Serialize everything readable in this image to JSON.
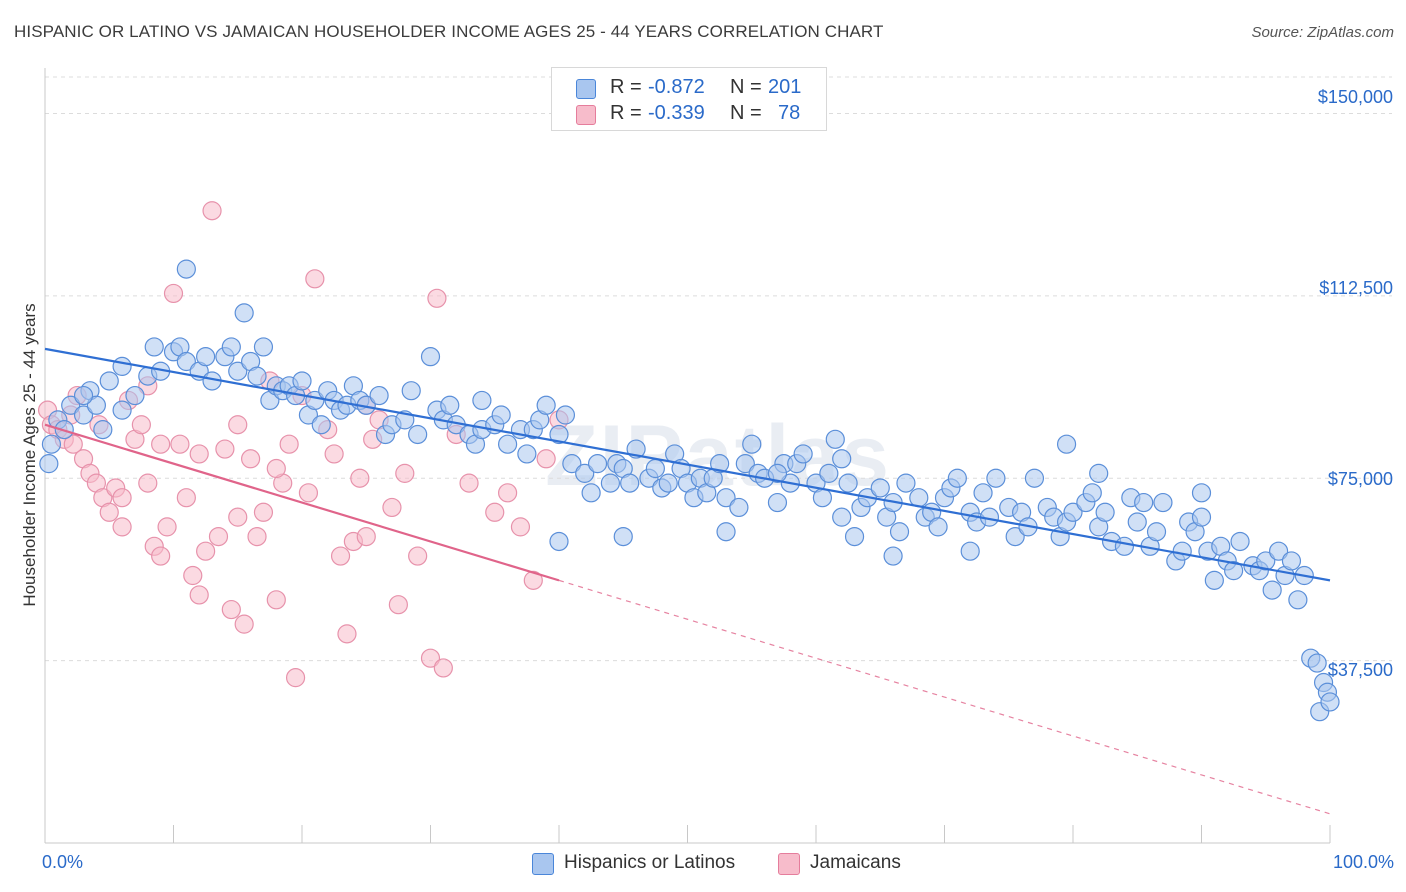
{
  "title": "HISPANIC OR LATINO VS JAMAICAN HOUSEHOLDER INCOME AGES 25 - 44 YEARS CORRELATION CHART",
  "source": "Source: ZipAtlas.com",
  "watermark": "ZIPatlas",
  "legend_stats": [
    {
      "r_label": "R =",
      "r_value": "-0.872",
      "n_label": "N =",
      "n_value": "201",
      "color": "#a9c6ef",
      "edge": "#4a86d9"
    },
    {
      "r_label": "R =",
      "r_value": "-0.339",
      "n_label": "N =",
      "n_value": "78",
      "color": "#f7bccb",
      "edge": "#e57d9c"
    }
  ],
  "colors": {
    "blue_fill": "#a9c6ef",
    "blue_edge": "#5b8fd9",
    "blue_line": "#2f6fd3",
    "pink_fill": "#f7bccb",
    "pink_edge": "#e792ab",
    "pink_line": "#e0648a",
    "tick_text": "#2a6ac9",
    "grid": "#dcdcdc"
  },
  "chart_data": {
    "type": "scatter",
    "title": "HISPANIC OR LATINO VS JAMAICAN HOUSEHOLDER INCOME AGES 25 - 44 YEARS CORRELATION CHART",
    "xlabel": "",
    "ylabel": "Householder Income Ages 25 - 44 years",
    "xlim": [
      0,
      100
    ],
    "ylim": [
      0,
      157500
    ],
    "x_tick_labels": [
      "0.0%",
      "100.0%"
    ],
    "y_ticks": [
      37500,
      75000,
      112500,
      150000
    ],
    "y_tick_labels": [
      "$37,500",
      "$75,000",
      "$112,500",
      "$150,000"
    ],
    "grid": true,
    "legend_position": "bottom",
    "series": [
      {
        "name": "Hispanics or Latinos",
        "trend": {
          "x": [
            0,
            100
          ],
          "y": [
            101600,
            54000
          ]
        },
        "points": [
          [
            0.3,
            78000
          ],
          [
            0.5,
            82000
          ],
          [
            1,
            87000
          ],
          [
            1.5,
            85000
          ],
          [
            2,
            90000
          ],
          [
            3,
            88000
          ],
          [
            3.5,
            93000
          ],
          [
            4,
            90000
          ],
          [
            4.5,
            85000
          ],
          [
            5,
            95000
          ],
          [
            6,
            98000
          ],
          [
            7,
            92000
          ],
          [
            8,
            96000
          ],
          [
            8.5,
            102000
          ],
          [
            9,
            97000
          ],
          [
            10,
            101000
          ],
          [
            10.5,
            102000
          ],
          [
            11,
            99000
          ],
          [
            12,
            97000
          ],
          [
            12.5,
            100000
          ],
          [
            13,
            95000
          ],
          [
            14,
            100000
          ],
          [
            14.5,
            102000
          ],
          [
            15,
            97000
          ],
          [
            15.5,
            109000
          ],
          [
            16,
            99000
          ],
          [
            16.5,
            96000
          ],
          [
            17,
            102000
          ],
          [
            17.5,
            91000
          ],
          [
            18,
            94000
          ],
          [
            18.5,
            93000
          ],
          [
            19,
            94000
          ],
          [
            19.5,
            92000
          ],
          [
            20,
            95000
          ],
          [
            20.5,
            88000
          ],
          [
            21,
            91000
          ],
          [
            21.5,
            86000
          ],
          [
            22,
            93000
          ],
          [
            22.5,
            91000
          ],
          [
            23,
            89000
          ],
          [
            23.5,
            90000
          ],
          [
            24,
            94000
          ],
          [
            24.5,
            91000
          ],
          [
            25,
            90000
          ],
          [
            26,
            92000
          ],
          [
            26.5,
            84000
          ],
          [
            27,
            86000
          ],
          [
            28,
            87000
          ],
          [
            28.5,
            93000
          ],
          [
            29,
            84000
          ],
          [
            30,
            100000
          ],
          [
            30.5,
            89000
          ],
          [
            31,
            87000
          ],
          [
            31.5,
            90000
          ],
          [
            32,
            86000
          ],
          [
            33,
            84000
          ],
          [
            33.5,
            82000
          ],
          [
            34,
            85000
          ],
          [
            35,
            86000
          ],
          [
            35.5,
            88000
          ],
          [
            36,
            82000
          ],
          [
            37,
            85000
          ],
          [
            37.5,
            80000
          ],
          [
            38,
            85000
          ],
          [
            38.5,
            87000
          ],
          [
            39,
            90000
          ],
          [
            40,
            84000
          ],
          [
            40.5,
            88000
          ],
          [
            41,
            78000
          ],
          [
            42,
            76000
          ],
          [
            42.5,
            72000
          ],
          [
            43,
            78000
          ],
          [
            44,
            74000
          ],
          [
            44.5,
            78000
          ],
          [
            45,
            77000
          ],
          [
            45.5,
            74000
          ],
          [
            46,
            81000
          ],
          [
            47,
            75000
          ],
          [
            47.5,
            77000
          ],
          [
            48,
            73000
          ],
          [
            48.5,
            74000
          ],
          [
            49,
            80000
          ],
          [
            49.5,
            77000
          ],
          [
            50,
            74000
          ],
          [
            50.5,
            71000
          ],
          [
            51,
            75000
          ],
          [
            51.5,
            72000
          ],
          [
            52,
            75000
          ],
          [
            52.5,
            78000
          ],
          [
            53,
            71000
          ],
          [
            54,
            69000
          ],
          [
            54.5,
            78000
          ],
          [
            55,
            82000
          ],
          [
            55.5,
            76000
          ],
          [
            56,
            75000
          ],
          [
            57,
            70000
          ],
          [
            57.5,
            78000
          ],
          [
            58,
            74000
          ],
          [
            58.5,
            78000
          ],
          [
            59,
            80000
          ],
          [
            60,
            74000
          ],
          [
            60.5,
            71000
          ],
          [
            61,
            76000
          ],
          [
            61.5,
            83000
          ],
          [
            62,
            67000
          ],
          [
            62.5,
            74000
          ],
          [
            63,
            63000
          ],
          [
            63.5,
            69000
          ],
          [
            64,
            71000
          ],
          [
            65,
            73000
          ],
          [
            65.5,
            67000
          ],
          [
            66,
            70000
          ],
          [
            66.5,
            64000
          ],
          [
            67,
            74000
          ],
          [
            68,
            71000
          ],
          [
            68.5,
            67000
          ],
          [
            69,
            68000
          ],
          [
            69.5,
            65000
          ],
          [
            70,
            71000
          ],
          [
            70.5,
            73000
          ],
          [
            71,
            75000
          ],
          [
            72,
            68000
          ],
          [
            72.5,
            66000
          ],
          [
            73,
            72000
          ],
          [
            73.5,
            67000
          ],
          [
            74,
            75000
          ],
          [
            75,
            69000
          ],
          [
            75.5,
            63000
          ],
          [
            76,
            68000
          ],
          [
            76.5,
            65000
          ],
          [
            77,
            75000
          ],
          [
            78,
            69000
          ],
          [
            78.5,
            67000
          ],
          [
            79,
            63000
          ],
          [
            79.5,
            66000
          ],
          [
            80,
            68000
          ],
          [
            81,
            70000
          ],
          [
            81.5,
            72000
          ],
          [
            82,
            65000
          ],
          [
            82.5,
            68000
          ],
          [
            83,
            62000
          ],
          [
            84,
            61000
          ],
          [
            84.5,
            71000
          ],
          [
            85,
            66000
          ],
          [
            85.5,
            70000
          ],
          [
            86,
            61000
          ],
          [
            86.5,
            64000
          ],
          [
            87,
            70000
          ],
          [
            88,
            58000
          ],
          [
            88.5,
            60000
          ],
          [
            89,
            66000
          ],
          [
            89.5,
            64000
          ],
          [
            90,
            72000
          ],
          [
            90.5,
            60000
          ],
          [
            91,
            54000
          ],
          [
            91.5,
            61000
          ],
          [
            92,
            58000
          ],
          [
            92.5,
            56000
          ],
          [
            93,
            62000
          ],
          [
            94,
            57000
          ],
          [
            94.5,
            56000
          ],
          [
            95,
            58000
          ],
          [
            95.5,
            52000
          ],
          [
            96,
            60000
          ],
          [
            96.5,
            55000
          ],
          [
            97,
            58000
          ],
          [
            97.5,
            50000
          ],
          [
            98,
            55000
          ],
          [
            98.5,
            38000
          ],
          [
            99,
            37000
          ],
          [
            99.5,
            33000
          ],
          [
            99.8,
            31000
          ],
          [
            99.2,
            27000
          ],
          [
            100,
            29000
          ],
          [
            79.5,
            82000
          ],
          [
            57,
            76000
          ],
          [
            62,
            79000
          ],
          [
            82,
            76000
          ],
          [
            90,
            67000
          ],
          [
            45,
            63000
          ],
          [
            53,
            64000
          ],
          [
            72,
            60000
          ],
          [
            34,
            91000
          ],
          [
            40,
            62000
          ],
          [
            66,
            59000
          ],
          [
            3,
            92000
          ],
          [
            6,
            89000
          ],
          [
            11,
            118000
          ]
        ]
      },
      {
        "name": "Jamaicans",
        "trend": {
          "x": [
            0,
            40
          ],
          "y": [
            86000,
            54000
          ]
        },
        "trend_dashed": {
          "x": [
            40,
            100
          ],
          "y": [
            54000,
            6000
          ]
        },
        "points": [
          [
            0.2,
            89000
          ],
          [
            0.5,
            86000
          ],
          [
            1,
            85000
          ],
          [
            1.5,
            83000
          ],
          [
            2,
            88000
          ],
          [
            2.5,
            92000
          ],
          [
            3,
            79000
          ],
          [
            3.5,
            76000
          ],
          [
            4,
            74000
          ],
          [
            4.5,
            71000
          ],
          [
            5,
            68000
          ],
          [
            5.5,
            73000
          ],
          [
            6,
            65000
          ],
          [
            6.5,
            91000
          ],
          [
            7,
            83000
          ],
          [
            7.5,
            86000
          ],
          [
            8,
            74000
          ],
          [
            8.5,
            61000
          ],
          [
            9,
            59000
          ],
          [
            9.5,
            65000
          ],
          [
            10,
            113000
          ],
          [
            10.5,
            82000
          ],
          [
            11,
            71000
          ],
          [
            11.5,
            55000
          ],
          [
            12,
            51000
          ],
          [
            12.5,
            60000
          ],
          [
            13,
            130000
          ],
          [
            13.5,
            63000
          ],
          [
            14,
            81000
          ],
          [
            14.5,
            48000
          ],
          [
            15,
            86000
          ],
          [
            15.5,
            45000
          ],
          [
            16,
            79000
          ],
          [
            16.5,
            63000
          ],
          [
            17,
            68000
          ],
          [
            17.5,
            95000
          ],
          [
            18,
            50000
          ],
          [
            18.5,
            74000
          ],
          [
            19,
            82000
          ],
          [
            19.5,
            34000
          ],
          [
            20,
            92000
          ],
          [
            20.5,
            72000
          ],
          [
            21,
            116000
          ],
          [
            22,
            85000
          ],
          [
            22.5,
            80000
          ],
          [
            23,
            59000
          ],
          [
            23.5,
            43000
          ],
          [
            24,
            62000
          ],
          [
            24.5,
            75000
          ],
          [
            25,
            63000
          ],
          [
            25.5,
            83000
          ],
          [
            26,
            87000
          ],
          [
            27,
            69000
          ],
          [
            27.5,
            49000
          ],
          [
            28,
            76000
          ],
          [
            29,
            59000
          ],
          [
            30,
            38000
          ],
          [
            30.5,
            112000
          ],
          [
            31,
            36000
          ],
          [
            32,
            84000
          ],
          [
            33,
            74000
          ],
          [
            35,
            68000
          ],
          [
            36,
            72000
          ],
          [
            37,
            65000
          ],
          [
            38,
            54000
          ],
          [
            39,
            79000
          ],
          [
            40,
            87000
          ],
          [
            9,
            82000
          ],
          [
            15,
            67000
          ],
          [
            4.2,
            86000
          ],
          [
            2.2,
            82000
          ],
          [
            12,
            80000
          ],
          [
            25,
            90000
          ],
          [
            6,
            71000
          ],
          [
            18,
            77000
          ],
          [
            8,
            94000
          ]
        ]
      }
    ]
  },
  "bottom_legend": [
    {
      "label": "Hispanics or Latinos"
    },
    {
      "label": "Jamaicans"
    }
  ]
}
